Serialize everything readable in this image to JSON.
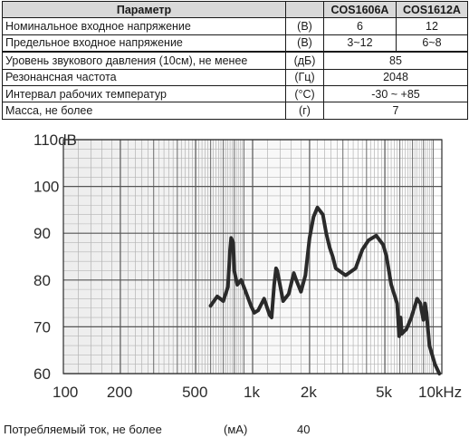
{
  "table": {
    "headers": [
      "Параметр",
      "COS1606A",
      "COS1612A"
    ],
    "rows": [
      {
        "name": "Номинальное входное напряжение",
        "unit": "(В)",
        "values": [
          "6",
          "12"
        ]
      },
      {
        "name": "Предельное входное напряжение",
        "unit": "(В)",
        "values": [
          "3~12",
          "6~8"
        ]
      },
      {
        "name": "Уровень звукового давления (10см), не менее",
        "unit": "(дБ)",
        "values": [
          "85"
        ]
      },
      {
        "name": "Резонансная частота",
        "unit": "(Гц)",
        "values": [
          "2048"
        ]
      },
      {
        "name": "Интервал рабочих температур",
        "unit": "(°С)",
        "values": [
          "-30 ~ +85"
        ]
      },
      {
        "name": "Масса, не более",
        "unit": "(г)",
        "values": [
          "7"
        ]
      }
    ]
  },
  "chart_data": {
    "type": "line",
    "x_scale": "log",
    "xlim": [
      100,
      10000
    ],
    "ylim": [
      60,
      110
    ],
    "y_ticks": [
      "110dB",
      "100",
      "90",
      "80",
      "70",
      "60"
    ],
    "x_ticks": [
      "100",
      "200",
      "500",
      "1k",
      "2k",
      "5k",
      "10kHz"
    ],
    "grid": true,
    "series": [
      {
        "color": "#2a2a2a",
        "x": [
          600,
          650,
          700,
          740,
          760,
          770,
          790,
          800,
          830,
          870,
          920,
          980,
          1020,
          1070,
          1150,
          1230,
          1260,
          1300,
          1330,
          1350,
          1450,
          1550,
          1650,
          1700,
          1800,
          1900,
          2000,
          2100,
          2200,
          2350,
          2450,
          2550,
          2650,
          2750,
          3100,
          3500,
          3800,
          4100,
          4500,
          4900,
          5100,
          5400,
          5800,
          5950,
          6050,
          6150,
          6300,
          6500,
          6900,
          7400,
          7700,
          7900,
          8000,
          8150,
          8300,
          8600,
          9200,
          9700
        ],
        "y": [
          74.5,
          76.5,
          75.5,
          78.5,
          86.5,
          89,
          88,
          82,
          79,
          80,
          77.5,
          74.5,
          73,
          73.5,
          76,
          72.5,
          72,
          79,
          82.5,
          82,
          75.5,
          77,
          81.5,
          80,
          77.5,
          81,
          89,
          93.5,
          95.5,
          94,
          90,
          87,
          85,
          82.5,
          81,
          82.5,
          86.5,
          88.5,
          89.5,
          87.5,
          85,
          79,
          75,
          68,
          72,
          68.5,
          69,
          69.5,
          72,
          76,
          75,
          72.5,
          71.5,
          75,
          73,
          66,
          62,
          60
        ]
      }
    ]
  },
  "footer": {
    "label": "Потребляемый ток, не более",
    "unit": "(мА)",
    "value": "40"
  }
}
